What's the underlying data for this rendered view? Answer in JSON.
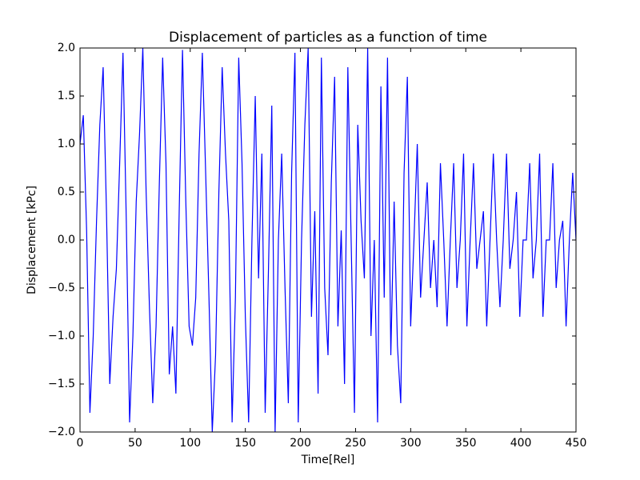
{
  "chart_data": {
    "type": "line",
    "title": "Displacement of particles as a function of time",
    "x_label": "Time[Rel]",
    "y_label": "Displacement [kPc]",
    "x": [
      0,
      3,
      6,
      9,
      12,
      15,
      18,
      21,
      24,
      27,
      30,
      33,
      36,
      39,
      42,
      45,
      48,
      51,
      54,
      57,
      60,
      63,
      66,
      69,
      72,
      75,
      78,
      81,
      84,
      87,
      90,
      93,
      96,
      99,
      102,
      105,
      108,
      111,
      114,
      117,
      120,
      123,
      126,
      129,
      132,
      135,
      138,
      141,
      144,
      147,
      150,
      153,
      156,
      159,
      162,
      165,
      168,
      171,
      174,
      177,
      180,
      183,
      186,
      189,
      192,
      195,
      198,
      201,
      204,
      207,
      210,
      213,
      216,
      219,
      222,
      225,
      228,
      231,
      234,
      237,
      240,
      243,
      246,
      249,
      252,
      255,
      258,
      261,
      264,
      267,
      270,
      273,
      276,
      279,
      282,
      285,
      288,
      291,
      294,
      297,
      300,
      303,
      306,
      309,
      312,
      315,
      318,
      321,
      324,
      327,
      330,
      333,
      336,
      339,
      342,
      345,
      348,
      351,
      354,
      357,
      360,
      363,
      366,
      369,
      372,
      375,
      378,
      381,
      384,
      387,
      390,
      393,
      396,
      399,
      402,
      405,
      408,
      411,
      414,
      417,
      420,
      423,
      426,
      429,
      432,
      435,
      438,
      441,
      444,
      447,
      450
    ],
    "values": [
      1.0,
      1.3,
      0.1,
      -1.8,
      -1.0,
      0.2,
      1.2,
      1.8,
      0.3,
      -1.5,
      -0.8,
      -0.3,
      0.8,
      1.95,
      0.2,
      -1.9,
      -1.0,
      0.4,
      1.1,
      2.0,
      0.5,
      -0.7,
      -1.7,
      -0.9,
      0.6,
      1.9,
      0.8,
      -1.4,
      -0.9,
      -1.6,
      0.3,
      1.98,
      0.4,
      -0.9,
      -1.1,
      -0.6,
      0.9,
      1.95,
      0.7,
      -0.6,
      -2.0,
      -1.2,
      0.5,
      1.8,
      0.9,
      0.2,
      -1.9,
      -0.6,
      1.9,
      0.8,
      -0.8,
      -1.9,
      0.0,
      1.5,
      -0.4,
      0.9,
      -1.8,
      -0.3,
      1.4,
      -2.0,
      0.0,
      0.9,
      -0.5,
      -1.7,
      0.7,
      1.95,
      -1.9,
      0.0,
      1.2,
      2.0,
      -0.8,
      0.3,
      -1.6,
      1.9,
      -0.5,
      -1.2,
      0.6,
      1.7,
      -0.9,
      0.1,
      -1.5,
      1.8,
      0.0,
      -1.8,
      1.2,
      0.2,
      -0.4,
      2.0,
      -1.0,
      0.0,
      -1.9,
      1.6,
      -0.6,
      1.9,
      -1.2,
      0.4,
      -1.1,
      -1.7,
      0.7,
      1.7,
      -0.9,
      0.0,
      1.0,
      -0.6,
      0.0,
      0.6,
      -0.5,
      0.0,
      -0.7,
      0.8,
      0.0,
      -0.9,
      0.0,
      0.8,
      -0.5,
      0.0,
      0.9,
      -0.9,
      0.0,
      0.8,
      -0.3,
      0.0,
      0.3,
      -0.9,
      0.0,
      0.9,
      0.0,
      -0.7,
      0.0,
      0.9,
      -0.3,
      0.0,
      0.5,
      -0.8,
      0.0,
      0.0,
      0.8,
      -0.4,
      0.0,
      0.9,
      -0.8,
      0.0,
      0.0,
      0.8,
      -0.5,
      0.0,
      0.2,
      -0.9,
      0.0,
      0.7,
      0.0
    ],
    "color": "#0000ff",
    "xlim": [
      0,
      450
    ],
    "xticks": [
      0,
      50,
      100,
      150,
      200,
      250,
      300,
      350,
      400,
      450
    ],
    "ylim": [
      -2,
      2
    ],
    "yticks": [
      {
        "value": -2,
        "label": "−2.0"
      },
      {
        "value": -1.5,
        "label": "−1.5"
      },
      {
        "value": -1,
        "label": "−1.0"
      },
      {
        "value": -0.5,
        "label": "−0.5"
      },
      {
        "value": 0,
        "label": "0.0"
      },
      {
        "value": 0.5,
        "label": "0.5"
      },
      {
        "value": 1,
        "label": "1.0"
      },
      {
        "value": 1.5,
        "label": "1.5"
      },
      {
        "value": 2,
        "label": "2.0"
      }
    ]
  }
}
